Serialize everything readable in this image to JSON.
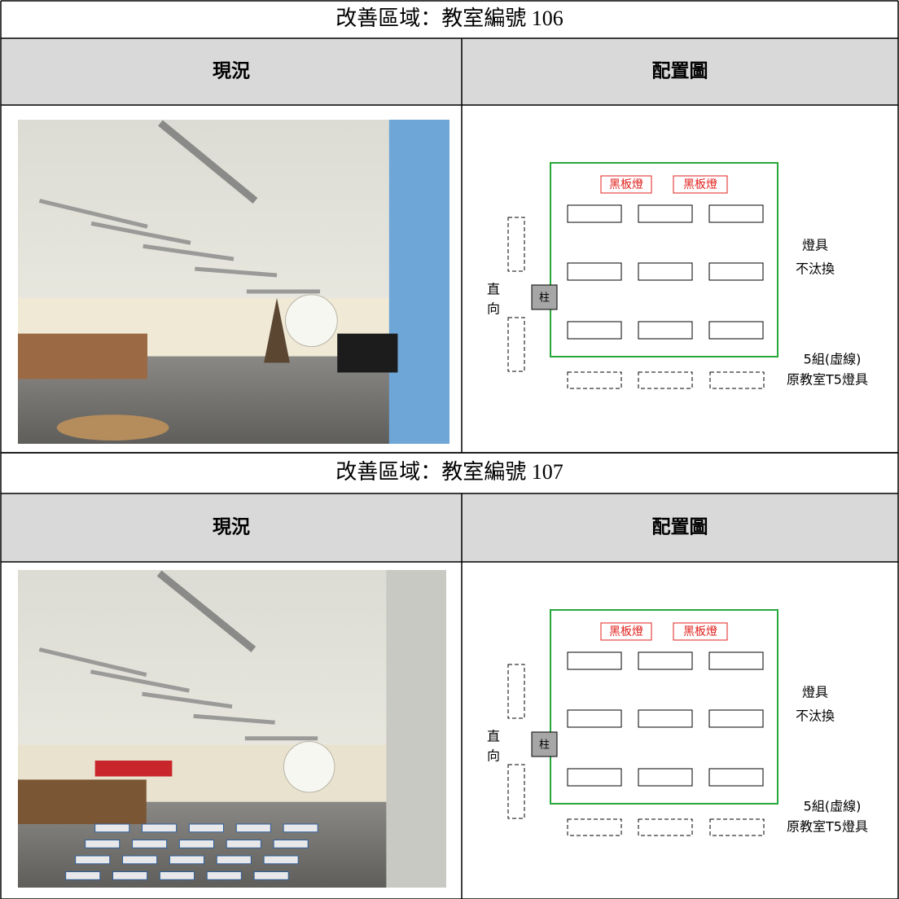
{
  "sections": [
    {
      "title": "改善區域：教室編號 106",
      "headers": [
        "現況",
        "配置圖"
      ],
      "diagram": {
        "blackboard_lights": [
          "黑板燈",
          "黑板燈"
        ],
        "fixture_note": [
          "燈具",
          "不汰換"
        ],
        "orientation": [
          "直",
          "向"
        ],
        "pillar": "柱",
        "dashed_note": [
          "5組(虛線)",
          "原教室T5燈具"
        ]
      }
    },
    {
      "title": "改善區域：教室編號 107",
      "headers": [
        "現況",
        "配置圖"
      ],
      "diagram": {
        "blackboard_lights": [
          "黑板燈",
          "黑板燈"
        ],
        "fixture_note": [
          "燈具",
          "不汰換"
        ],
        "orientation": [
          "直",
          "向"
        ],
        "pillar": "柱",
        "dashed_note": [
          "5組(虛線)",
          "原教室T5燈具"
        ]
      }
    }
  ]
}
